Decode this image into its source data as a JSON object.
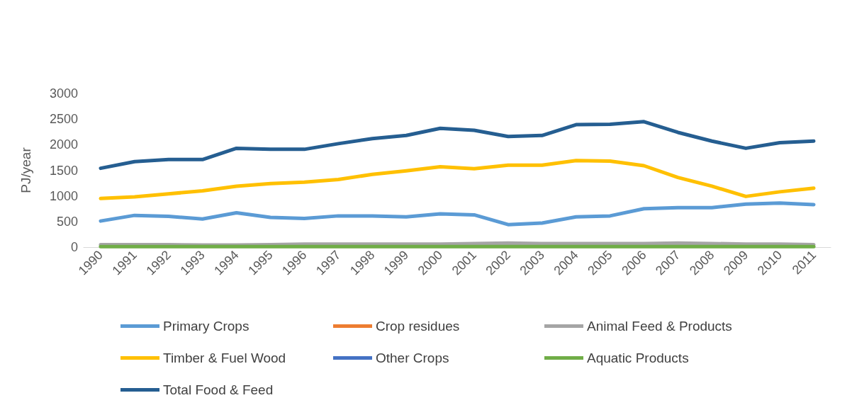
{
  "chart_data": {
    "type": "line",
    "ylabel": "PJ/year",
    "categories": [
      "1990",
      "1991",
      "1992",
      "1993",
      "1994",
      "1995",
      "1996",
      "1997",
      "1998",
      "1999",
      "2000",
      "2001",
      "2002",
      "2003",
      "2004",
      "2005",
      "2006",
      "2007",
      "2008",
      "2009",
      "2010",
      "2011"
    ],
    "series": [
      {
        "name": "Primary Crops",
        "color": "#5b9bd5",
        "values": [
          510,
          620,
          600,
          550,
          670,
          580,
          560,
          610,
          610,
          590,
          650,
          630,
          440,
          470,
          590,
          610,
          750,
          770,
          770,
          840,
          860,
          830
        ]
      },
      {
        "name": "Crop residues",
        "color": "#ed7d31",
        "values": [
          null,
          null,
          null,
          null,
          null,
          null,
          null,
          null,
          null,
          null,
          null,
          null,
          null,
          null,
          null,
          null,
          null,
          null,
          null,
          null,
          null,
          null
        ]
      },
      {
        "name": "Animal Feed & Products",
        "color": "#a5a5a5",
        "values": [
          50,
          50,
          50,
          40,
          40,
          50,
          60,
          60,
          60,
          60,
          60,
          70,
          80,
          70,
          70,
          70,
          70,
          80,
          70,
          60,
          60,
          50
        ]
      },
      {
        "name": "Timber & Fuel Wood",
        "color": "#ffc000",
        "values": [
          950,
          980,
          1040,
          1100,
          1190,
          1240,
          1270,
          1320,
          1420,
          1490,
          1570,
          1530,
          1600,
          1600,
          1690,
          1680,
          1590,
          1360,
          1190,
          990,
          1080,
          1150
        ]
      },
      {
        "name": "Other Crops",
        "color": "#4472c4",
        "values": [
          null,
          null,
          null,
          null,
          null,
          null,
          null,
          null,
          null,
          null,
          null,
          null,
          null,
          null,
          null,
          null,
          null,
          null,
          null,
          null,
          null,
          null
        ]
      },
      {
        "name": "Aquatic Products",
        "color": "#70ad47",
        "values": [
          10,
          10,
          10,
          10,
          10,
          10,
          10,
          10,
          10,
          10,
          10,
          10,
          10,
          10,
          10,
          10,
          10,
          10,
          10,
          10,
          10,
          10
        ]
      },
      {
        "name": "Total Food & Feed",
        "color": "#255e91",
        "values": [
          1540,
          1670,
          1710,
          1710,
          1930,
          1910,
          1910,
          2020,
          2120,
          2180,
          2320,
          2280,
          2160,
          2180,
          2390,
          2400,
          2450,
          2240,
          2070,
          1930,
          2040,
          2070
        ]
      }
    ],
    "ylim": [
      0,
      3000
    ],
    "yticks": [
      0,
      500,
      {
        "value": 1000,
        "label": "1000"
      },
      {
        "value": 1500,
        "label": "1500"
      },
      {
        "value": 2000,
        "label": "2000"
      },
      {
        "value": 2500,
        "label": "2500"
      },
      {
        "value": 3000,
        "label": "3000"
      }
    ],
    "grid": false,
    "legend": "bottom",
    "marker": "none",
    "line_style": "solid"
  }
}
